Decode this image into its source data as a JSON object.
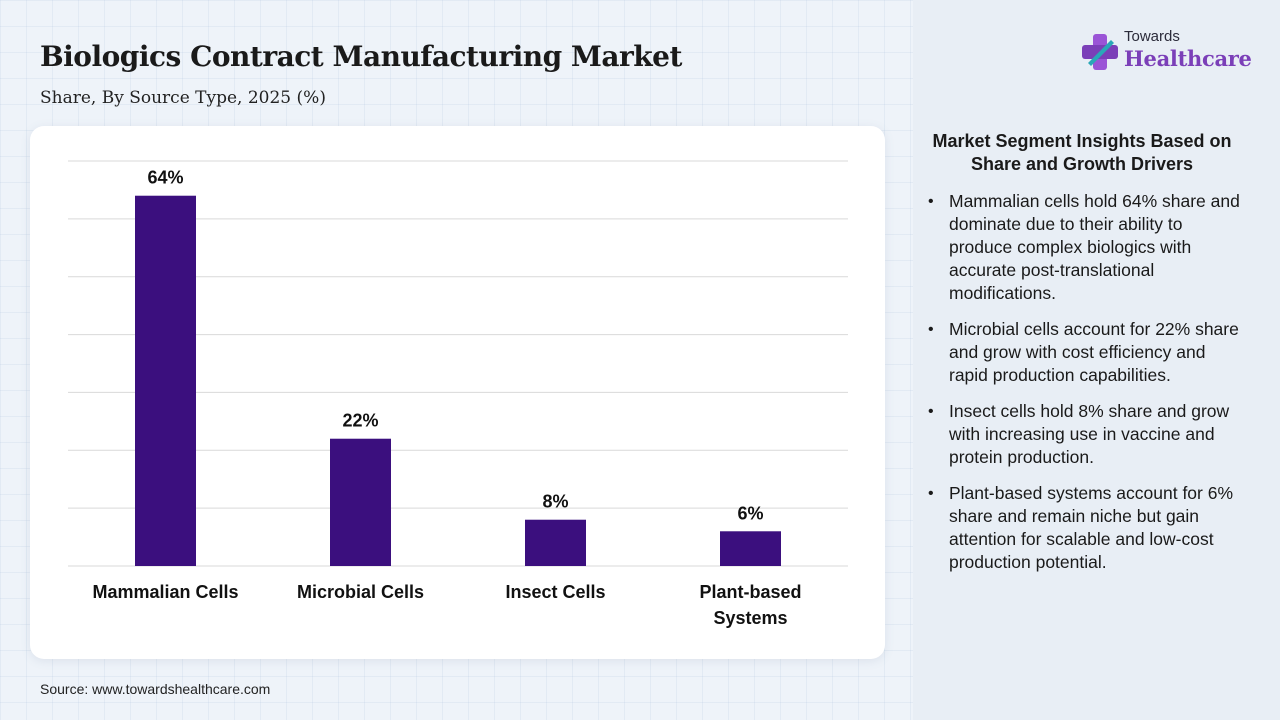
{
  "header": {
    "title": "Biologics Contract Manufacturing Market",
    "subtitle": "Share, By Source Type, 2025 (%)"
  },
  "brand": {
    "top": "Towards",
    "main": "Healthcare",
    "icon": "medical-cross-icon",
    "colors": {
      "purple": "#7b3fb8",
      "teal": "#2aa7b8",
      "violet": "#9a54d6"
    }
  },
  "chart_data": {
    "type": "bar",
    "categories": [
      "Mammalian Cells",
      "Microbial Cells",
      "Insect Cells",
      "Plant-based Systems"
    ],
    "values": [
      64,
      22,
      8,
      6
    ],
    "value_labels": [
      "64%",
      "22%",
      "8%",
      "6%"
    ],
    "unit": "%",
    "ylim": [
      0,
      70
    ],
    "grid": true,
    "legend": "none",
    "bar_color": "#3b0f7e",
    "title": "",
    "xlabel": "",
    "ylabel": ""
  },
  "insights": {
    "heading": "Market Segment Insights Based on Share and Growth Drivers",
    "items": [
      "Mammalian cells hold 64% share and dominate due to their ability to produce complex biologics with accurate post-translational modifications.",
      "Microbial cells account for 22% share and grow with cost efficiency and rapid production capabilities.",
      "Insect cells hold 8% share and grow with increasing use in vaccine and protein production.",
      "Plant-based systems account for 6% share and remain niche but gain attention for scalable and low-cost production potential."
    ]
  },
  "source": "Source: www.towardshealthcare.com"
}
